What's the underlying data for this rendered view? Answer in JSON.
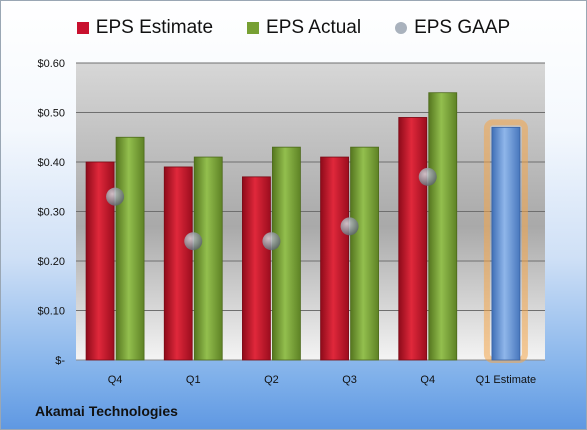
{
  "company": "Akamai Technologies",
  "chart_data": {
    "type": "bar",
    "categories": [
      "Q4",
      "Q1",
      "Q2",
      "Q3",
      "Q4",
      "Q1 Estimate"
    ],
    "series": [
      {
        "name": "EPS Estimate",
        "values": [
          0.4,
          0.39,
          0.37,
          0.41,
          0.49,
          null
        ],
        "color": "#c8102e"
      },
      {
        "name": "EPS Actual",
        "values": [
          0.45,
          0.41,
          0.43,
          0.43,
          0.54,
          null
        ],
        "color": "#77a033"
      },
      {
        "name": "EPS GAAP",
        "values": [
          0.33,
          0.24,
          0.24,
          0.27,
          0.37,
          null
        ],
        "color": "#a9b2bd"
      }
    ],
    "forecast": {
      "category": "Q1 Estimate",
      "value": 0.47,
      "color": "#5f90d6",
      "glow": "#f4a54a"
    },
    "ylim": [
      0,
      0.6
    ],
    "yticks": [
      {
        "value": 0,
        "label": "$-"
      },
      {
        "value": 0.1,
        "label": "$0.10"
      },
      {
        "value": 0.2,
        "label": "$0.20"
      },
      {
        "value": 0.3,
        "label": "$0.30"
      },
      {
        "value": 0.4,
        "label": "$0.40"
      },
      {
        "value": 0.5,
        "label": "$0.50"
      },
      {
        "value": 0.6,
        "label": "$0.60"
      }
    ],
    "grid": true,
    "legend": "top"
  }
}
